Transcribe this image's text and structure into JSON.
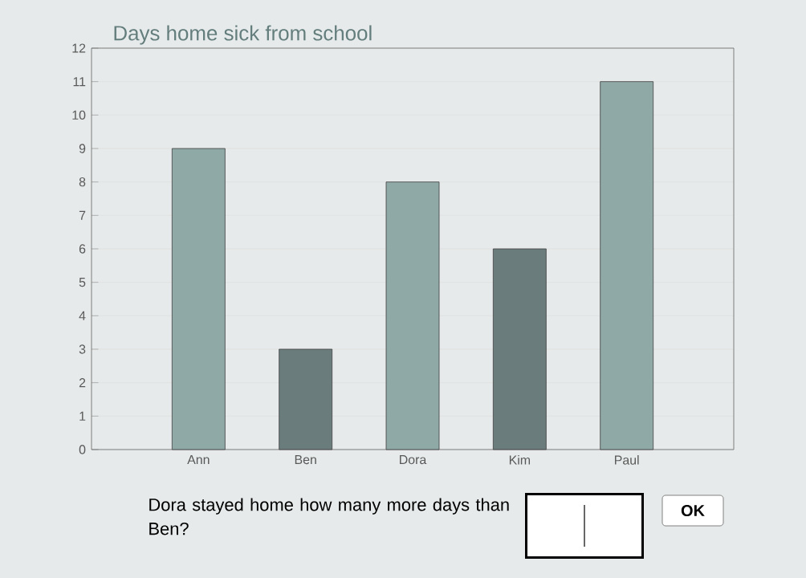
{
  "chart_data": {
    "type": "bar",
    "title": "Days home sick from school",
    "categories": [
      "Ann",
      "Ben",
      "Dora",
      "Kim",
      "Paul"
    ],
    "values": [
      9,
      3,
      8,
      6,
      11
    ],
    "colors": [
      "#8fa9a7",
      "#6b7c7c",
      "#8fa9a7",
      "#6b7c7c",
      "#8fa9a7"
    ],
    "ylim": [
      0,
      12
    ],
    "yticks": [
      0,
      1,
      2,
      3,
      4,
      5,
      6,
      7,
      8,
      9,
      10,
      11,
      12
    ],
    "grid": "y",
    "annotations": [
      "Dora stayed home how many more days than Ben?",
      "OK"
    ]
  }
}
